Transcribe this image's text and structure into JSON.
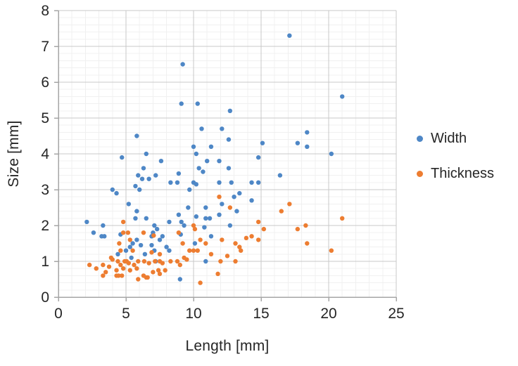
{
  "chart_data": {
    "type": "scatter",
    "title": "",
    "xlabel": "Length [mm]",
    "ylabel": "Size [mm]",
    "xlim": [
      0,
      25
    ],
    "ylim": [
      0,
      8
    ],
    "x_ticks": [
      0,
      5,
      10,
      15,
      20,
      25
    ],
    "y_ticks": [
      0,
      1,
      2,
      3,
      4,
      5,
      6,
      7,
      8
    ],
    "x_minor_step": 1,
    "y_minor_step": 0.2,
    "grid": "major+minor",
    "legend_position": "right",
    "marker_radius": 3.2,
    "style": {
      "grid_major_color": "#c9c9c9",
      "grid_minor_color": "#f0f0f0",
      "axis_color": "#a6a6a6",
      "text_color": "#262626"
    },
    "series": [
      {
        "name": "Width",
        "color": "#4e87c6",
        "points": [
          [
            2.1,
            2.1
          ],
          [
            2.6,
            1.8
          ],
          [
            3.2,
            1.7
          ],
          [
            3.3,
            2.0
          ],
          [
            3.4,
            1.7
          ],
          [
            4.0,
            3.0
          ],
          [
            4.3,
            2.9
          ],
          [
            4.4,
            1.2
          ],
          [
            4.6,
            1.75
          ],
          [
            4.7,
            3.9
          ],
          [
            5.0,
            1.3
          ],
          [
            5.2,
            2.6
          ],
          [
            5.3,
            1.4
          ],
          [
            5.4,
            1.1
          ],
          [
            5.5,
            1.5
          ],
          [
            5.7,
            3.1
          ],
          [
            5.7,
            2.2
          ],
          [
            5.8,
            4.5
          ],
          [
            5.8,
            2.4
          ],
          [
            5.8,
            1.6
          ],
          [
            5.9,
            3.4
          ],
          [
            6.0,
            3.0
          ],
          [
            6.1,
            1.45
          ],
          [
            6.2,
            3.3
          ],
          [
            6.3,
            3.6
          ],
          [
            6.4,
            1.2
          ],
          [
            6.5,
            4.0
          ],
          [
            6.5,
            2.2
          ],
          [
            6.7,
            3.3
          ],
          [
            6.9,
            1.7
          ],
          [
            6.9,
            1.45
          ],
          [
            7.0,
            1.8
          ],
          [
            7.1,
            2.0
          ],
          [
            7.1,
            1.3
          ],
          [
            7.2,
            3.4
          ],
          [
            7.2,
            1.0
          ],
          [
            7.3,
            1.9
          ],
          [
            7.5,
            1.6
          ],
          [
            7.6,
            3.8
          ],
          [
            7.7,
            1.7
          ],
          [
            8.0,
            1.4
          ],
          [
            8.2,
            2.1
          ],
          [
            8.2,
            1.3
          ],
          [
            8.3,
            3.2
          ],
          [
            8.8,
            3.2
          ],
          [
            8.9,
            3.45
          ],
          [
            8.9,
            2.3
          ],
          [
            9.0,
            0.5
          ],
          [
            9.05,
            1.75
          ],
          [
            9.1,
            5.4
          ],
          [
            9.1,
            2.1
          ],
          [
            9.2,
            6.5
          ],
          [
            9.3,
            2.0
          ],
          [
            9.6,
            2.5
          ],
          [
            9.7,
            3.0
          ],
          [
            10.0,
            4.2
          ],
          [
            10.0,
            3.2
          ],
          [
            10.1,
            1.5
          ],
          [
            10.2,
            4.0
          ],
          [
            10.2,
            3.15
          ],
          [
            10.2,
            2.25
          ],
          [
            10.3,
            5.4
          ],
          [
            10.4,
            3.6
          ],
          [
            10.6,
            4.7
          ],
          [
            10.7,
            3.5
          ],
          [
            10.8,
            1.95
          ],
          [
            10.9,
            2.5
          ],
          [
            10.9,
            2.2
          ],
          [
            10.9,
            1.0
          ],
          [
            11.0,
            3.8
          ],
          [
            11.2,
            2.2
          ],
          [
            11.3,
            4.2
          ],
          [
            11.3,
            1.7
          ],
          [
            11.9,
            3.8
          ],
          [
            11.9,
            3.2
          ],
          [
            11.9,
            2.3
          ],
          [
            12.1,
            4.7
          ],
          [
            12.1,
            2.6
          ],
          [
            12.6,
            4.4
          ],
          [
            12.6,
            3.6
          ],
          [
            12.7,
            5.2
          ],
          [
            12.7,
            2.0
          ],
          [
            12.8,
            3.2
          ],
          [
            13.0,
            2.8
          ],
          [
            13.2,
            2.4
          ],
          [
            13.4,
            2.9
          ],
          [
            14.3,
            3.2
          ],
          [
            14.3,
            2.7
          ],
          [
            14.8,
            3.9
          ],
          [
            14.8,
            3.2
          ],
          [
            15.1,
            4.3
          ],
          [
            16.4,
            3.4
          ],
          [
            17.1,
            7.3
          ],
          [
            17.7,
            4.3
          ],
          [
            18.4,
            4.6
          ],
          [
            18.4,
            4.2
          ],
          [
            20.2,
            4.0
          ],
          [
            21.0,
            5.6
          ]
        ]
      },
      {
        "name": "Thickness",
        "color": "#ed7d31",
        "points": [
          [
            2.3,
            0.9
          ],
          [
            2.8,
            0.8
          ],
          [
            3.3,
            0.9
          ],
          [
            3.3,
            0.6
          ],
          [
            3.5,
            0.7
          ],
          [
            3.75,
            0.85
          ],
          [
            3.9,
            1.1
          ],
          [
            4.0,
            1.05
          ],
          [
            4.3,
            0.75
          ],
          [
            4.3,
            0.6
          ],
          [
            4.4,
            1.0
          ],
          [
            4.45,
            0.6
          ],
          [
            4.5,
            1.5
          ],
          [
            4.6,
            1.3
          ],
          [
            4.6,
            0.9
          ],
          [
            4.7,
            0.6
          ],
          [
            4.8,
            2.1
          ],
          [
            4.8,
            1.8
          ],
          [
            4.8,
            0.8
          ],
          [
            4.9,
            1.0
          ],
          [
            5.05,
            1.0
          ],
          [
            5.15,
            1.8
          ],
          [
            5.2,
            0.95
          ],
          [
            5.3,
            1.6
          ],
          [
            5.3,
            0.75
          ],
          [
            5.5,
            1.3
          ],
          [
            5.6,
            0.9
          ],
          [
            5.8,
            0.8
          ],
          [
            5.9,
            1.0
          ],
          [
            5.9,
            0.5
          ],
          [
            6.3,
            1.8
          ],
          [
            6.3,
            0.6
          ],
          [
            6.35,
            1.0
          ],
          [
            6.5,
            0.55
          ],
          [
            6.6,
            0.55
          ],
          [
            6.7,
            0.95
          ],
          [
            6.9,
            1.25
          ],
          [
            7.0,
            0.7
          ],
          [
            7.05,
            1.72
          ],
          [
            7.15,
            1.0
          ],
          [
            7.4,
            0.75
          ],
          [
            7.5,
            1.2
          ],
          [
            7.5,
            1.0
          ],
          [
            7.5,
            0.65
          ],
          [
            7.7,
            0.95
          ],
          [
            7.9,
            0.75
          ],
          [
            8.3,
            1.0
          ],
          [
            8.8,
            1.0
          ],
          [
            8.9,
            1.8
          ],
          [
            9.0,
            0.9
          ],
          [
            9.2,
            1.5
          ],
          [
            9.3,
            1.1
          ],
          [
            9.5,
            1.05
          ],
          [
            9.7,
            1.3
          ],
          [
            10.0,
            2.0
          ],
          [
            10.0,
            1.3
          ],
          [
            10.1,
            1.9
          ],
          [
            10.3,
            1.3
          ],
          [
            10.5,
            1.6
          ],
          [
            10.5,
            0.4
          ],
          [
            10.9,
            1.5
          ],
          [
            11.3,
            1.2
          ],
          [
            11.8,
            0.65
          ],
          [
            11.9,
            2.8
          ],
          [
            12.0,
            1.0
          ],
          [
            12.1,
            1.6
          ],
          [
            12.5,
            1.15
          ],
          [
            12.7,
            2.5
          ],
          [
            13.1,
            1.5
          ],
          [
            13.1,
            1.0
          ],
          [
            13.4,
            1.4
          ],
          [
            13.5,
            1.3
          ],
          [
            13.9,
            1.65
          ],
          [
            14.3,
            1.7
          ],
          [
            14.8,
            2.1
          ],
          [
            14.8,
            1.6
          ],
          [
            15.2,
            1.9
          ],
          [
            16.5,
            2.4
          ],
          [
            17.1,
            2.6
          ],
          [
            17.7,
            1.9
          ],
          [
            18.3,
            2.0
          ],
          [
            18.4,
            1.5
          ],
          [
            20.2,
            1.3
          ],
          [
            21.0,
            2.2
          ]
        ]
      }
    ]
  }
}
